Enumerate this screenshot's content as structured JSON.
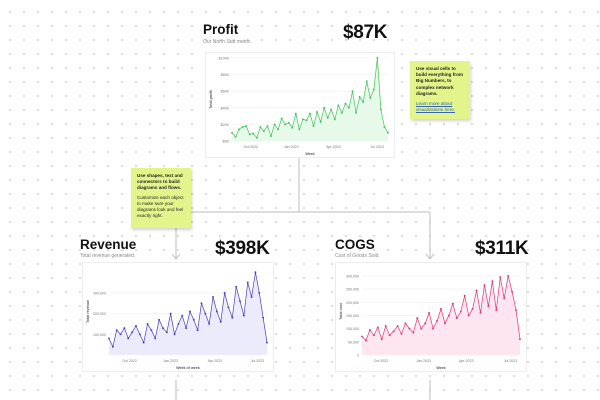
{
  "cards": {
    "profit": {
      "title": "Profit",
      "subtitle": "Our North Star metric.",
      "big_number": "$87K"
    },
    "revenue": {
      "title": "Revenue",
      "subtitle": "Total revenue generated.",
      "big_number": "$398K"
    },
    "cogs": {
      "title": "COGS",
      "subtitle": "Cost of Goods Sold.",
      "big_number": "$311K"
    }
  },
  "notes": {
    "visual_cells": {
      "heading": "Use visual cells to build everything from Big Numbers, to complex network diagrams.",
      "link": "Learn more about visualizations here."
    },
    "shapes": {
      "heading": "Use shapes, text and connectors to build diagrams and flows.",
      "body": "Customize each object to make sure your diagrams look and feel exactly right."
    }
  },
  "colors": {
    "profit_line": "#3fc25a",
    "profit_fill": "#e7f9e9",
    "revenue_line": "#4a3fc0",
    "revenue_fill": "#ecebfb",
    "cogs_line": "#e0357a",
    "cogs_fill": "#fde6ef",
    "note_bg": "#e3f58a",
    "connector": "#bdbdbd"
  },
  "chart_data": [
    {
      "id": "profit",
      "type": "area",
      "title": "Profit",
      "xlabel": "Week",
      "ylabel": "Total profit",
      "ylim": [
        0,
        100000
      ],
      "y_ticks": [
        0,
        20000,
        40000,
        60000,
        80000,
        100000
      ],
      "y_tick_labels": [
        "$0K",
        "$20K",
        "$40K",
        "$60K",
        "$80K",
        "$100K"
      ],
      "x_tick_labels": [
        "Oct 2022",
        "Jan 2023",
        "Apr 2023",
        "Jul 2023"
      ],
      "x_tick_positions": [
        0.12,
        0.38,
        0.65,
        0.93
      ],
      "values": [
        10000,
        5000,
        14000,
        17000,
        18000,
        8000,
        9000,
        4000,
        17000,
        12000,
        18000,
        6000,
        20000,
        14000,
        27000,
        20000,
        22000,
        16000,
        33000,
        14000,
        26000,
        25000,
        33000,
        18000,
        35000,
        23000,
        40000,
        28000,
        38000,
        26000,
        43000,
        34000,
        45000,
        40000,
        60000,
        34000,
        53000,
        47000,
        72000,
        52000,
        62000,
        100000,
        38000,
        17000,
        10000
      ]
    },
    {
      "id": "revenue",
      "type": "area",
      "title": "Revenue",
      "xlabel": "Week of week",
      "ylabel": "Total revenue",
      "ylim": [
        0,
        420000
      ],
      "y_ticks": [
        100000,
        200000,
        300000
      ],
      "y_tick_labels": [
        "100,000",
        "200,000",
        "300,000"
      ],
      "x_tick_labels": [
        "Oct 2022",
        "Jan 2023",
        "Apr 2023",
        "Jul 2023"
      ],
      "x_tick_positions": [
        0.13,
        0.39,
        0.67,
        0.94
      ],
      "values": [
        80000,
        40000,
        120000,
        100000,
        130000,
        80000,
        110000,
        140000,
        100000,
        60000,
        150000,
        120000,
        80000,
        170000,
        130000,
        110000,
        200000,
        100000,
        150000,
        190000,
        130000,
        210000,
        170000,
        120000,
        250000,
        200000,
        150000,
        280000,
        210000,
        160000,
        300000,
        230000,
        180000,
        330000,
        260000,
        190000,
        350000,
        280000,
        400000,
        300000,
        180000,
        60000
      ]
    },
    {
      "id": "cogs",
      "type": "area",
      "title": "COGS",
      "xlabel": "Week",
      "ylabel": "Total cost",
      "ylim": [
        0,
        330000
      ],
      "y_ticks": [
        0,
        50000,
        100000,
        150000,
        200000,
        250000,
        300000
      ],
      "y_tick_labels": [
        "0",
        "50,000",
        "100,000",
        "150,000",
        "200,000",
        "250,000",
        "300,000"
      ],
      "x_tick_labels": [
        "Oct 2022",
        "Jan 2023",
        "Apr 2023",
        "Jul 2023"
      ],
      "x_tick_positions": [
        0.12,
        0.39,
        0.66,
        0.94
      ],
      "values": [
        70000,
        55000,
        95000,
        75000,
        105000,
        60000,
        110000,
        75000,
        90000,
        110000,
        80000,
        120000,
        100000,
        85000,
        140000,
        100000,
        120000,
        160000,
        100000,
        130000,
        175000,
        120000,
        150000,
        195000,
        140000,
        165000,
        225000,
        150000,
        175000,
        245000,
        160000,
        265000,
        185000,
        280000,
        170000,
        295000,
        215000,
        300000,
        240000,
        170000,
        60000
      ]
    }
  ]
}
